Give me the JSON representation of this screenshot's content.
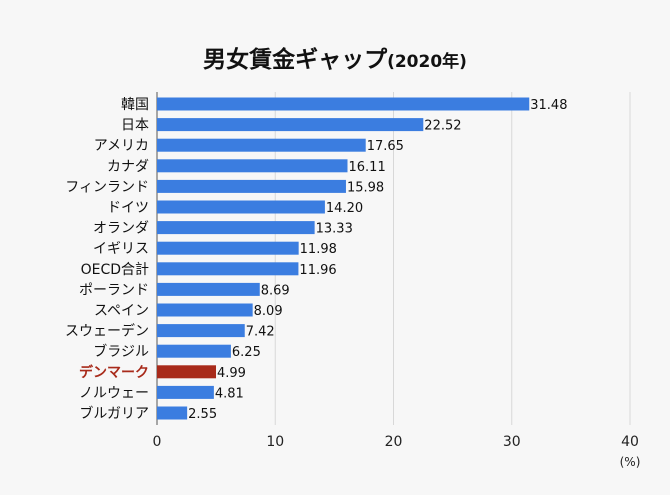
{
  "chart_data": {
    "type": "bar",
    "orientation": "horizontal",
    "title": "男女賃金ギャップ",
    "subtitle": "(2020年)",
    "xlabel": "(%)",
    "xlim": [
      0,
      40
    ],
    "xticks": [
      0,
      10,
      20,
      30,
      40
    ],
    "grid": true,
    "categories": [
      "韓国",
      "日本",
      "アメリカ",
      "カナダ",
      "フィンランド",
      "ドイツ",
      "オランダ",
      "イギリス",
      "OECD合計",
      "ポーランド",
      "スペイン",
      "スウェーデン",
      "ブラジル",
      "デンマーク",
      "ノルウェー",
      "ブルガリア"
    ],
    "values": [
      31.48,
      22.52,
      17.65,
      16.11,
      15.98,
      14.2,
      13.33,
      11.98,
      11.96,
      8.69,
      8.09,
      7.42,
      6.25,
      4.99,
      4.81,
      2.55
    ],
    "value_labels": [
      "31.48",
      "22.52",
      "17.65",
      "16.11",
      "15.98",
      "14.20",
      "13.33",
      "11.98",
      "11.96",
      "8.69",
      "8.09",
      "7.42",
      "6.25",
      "4.99",
      "4.81",
      "2.55"
    ],
    "highlight": "デンマーク",
    "colors": {
      "bar": "#3b7de0",
      "highlight": "#a82a1a",
      "grid": "#d8d8d8",
      "axis": "#555555"
    }
  }
}
